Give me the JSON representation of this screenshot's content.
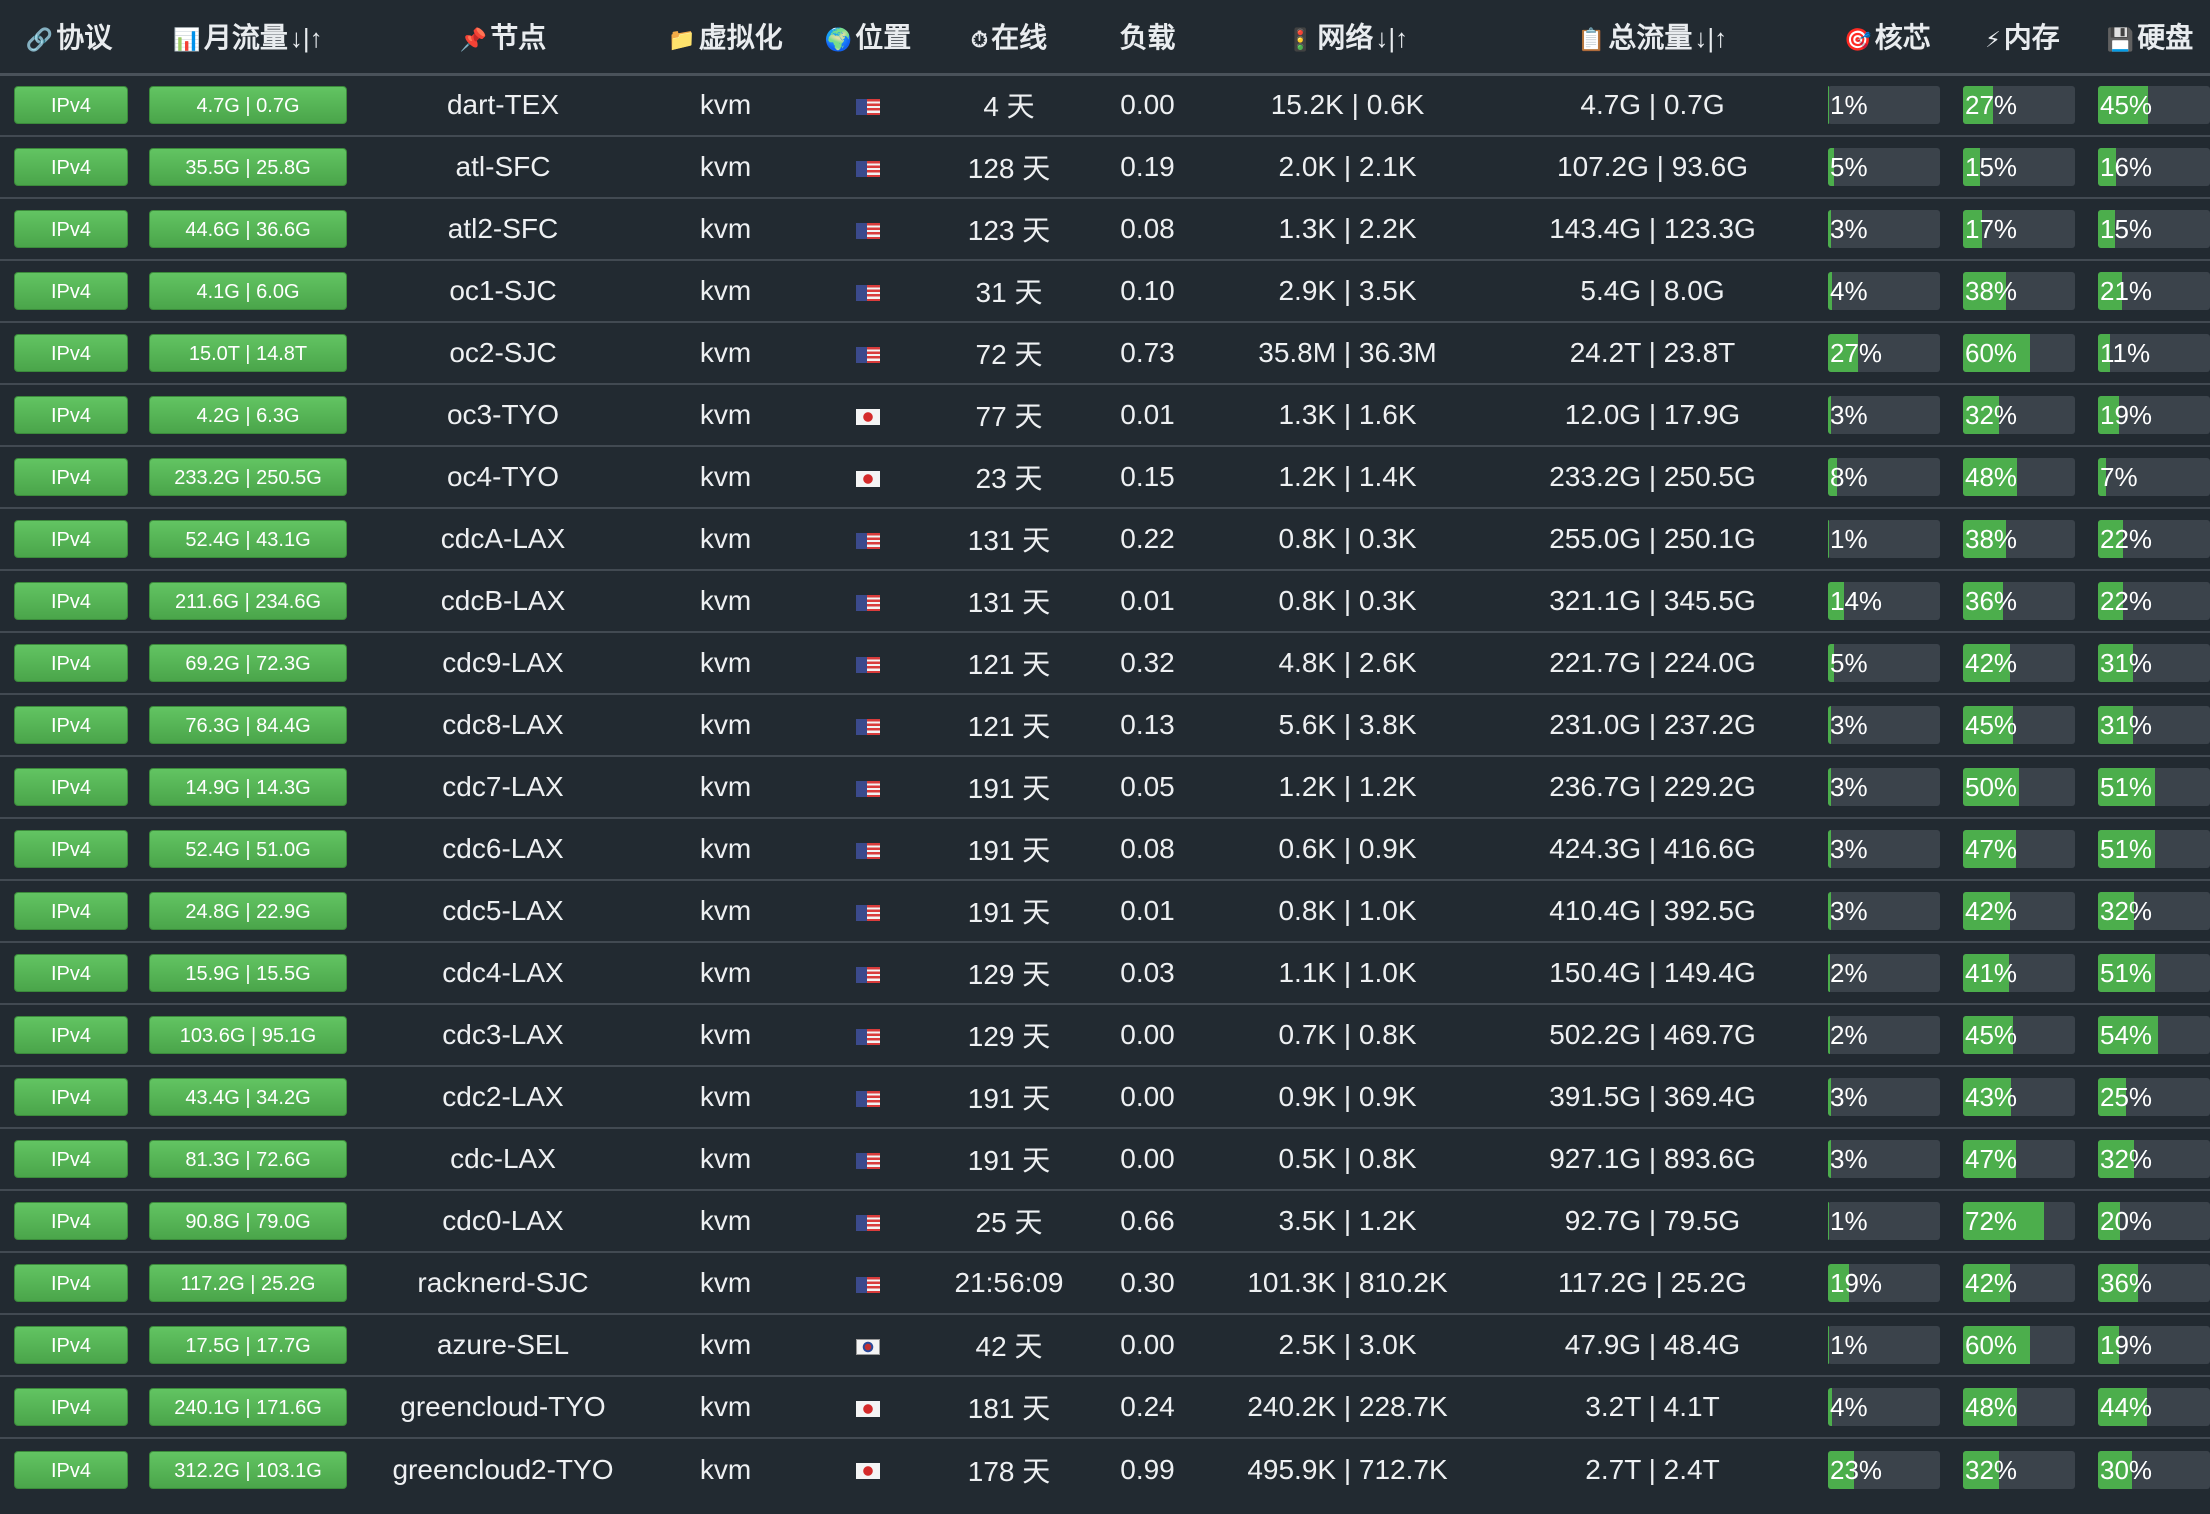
{
  "headers": {
    "protocol": {
      "icon": "🔗",
      "label": "协议"
    },
    "monthly": {
      "icon": "📊",
      "label": "月流量",
      "sort": "↓|↑"
    },
    "node": {
      "icon": "📌",
      "label": "节点"
    },
    "virt": {
      "icon": "📁",
      "label": "虚拟化"
    },
    "location": {
      "icon": "🌍",
      "label": "位置"
    },
    "uptime": {
      "icon": "⏱",
      "label": "在线"
    },
    "load": {
      "label": "负载"
    },
    "network": {
      "icon": "🚦",
      "label": "网络",
      "sort": "↓|↑"
    },
    "total": {
      "icon": "📋",
      "label": "总流量",
      "sort": "↓|↑"
    },
    "cpu": {
      "icon": "🎯",
      "label": "核芯"
    },
    "mem": {
      "icon": "⚡",
      "label": "内存"
    },
    "disk": {
      "icon": "💾",
      "label": "硬盘"
    }
  },
  "colors": {
    "bar_fill": "#4cae4c",
    "bar_bg": "#3b434b",
    "button": "#5cb85c",
    "page_bg": "#222a31"
  },
  "rows": [
    {
      "protocol": "IPv4",
      "monthly": "4.7G | 0.7G",
      "node": "dart-TEX",
      "virt": "kvm",
      "flag": "us",
      "uptime": "4 天",
      "load": "0.00",
      "network": "15.2K | 0.6K",
      "total": "4.7G | 0.7G",
      "cpu": "1%",
      "cpu_pct": 1,
      "mem": "27%",
      "mem_pct": 27,
      "disk": "45%",
      "disk_pct": 45
    },
    {
      "protocol": "IPv4",
      "monthly": "35.5G | 25.8G",
      "node": "atl-SFC",
      "virt": "kvm",
      "flag": "us",
      "uptime": "128 天",
      "load": "0.19",
      "network": "2.0K | 2.1K",
      "total": "107.2G | 93.6G",
      "cpu": "5%",
      "cpu_pct": 5,
      "mem": "15%",
      "mem_pct": 15,
      "disk": "16%",
      "disk_pct": 16
    },
    {
      "protocol": "IPv4",
      "monthly": "44.6G | 36.6G",
      "node": "atl2-SFC",
      "virt": "kvm",
      "flag": "us",
      "uptime": "123 天",
      "load": "0.08",
      "network": "1.3K | 2.2K",
      "total": "143.4G | 123.3G",
      "cpu": "3%",
      "cpu_pct": 3,
      "mem": "17%",
      "mem_pct": 17,
      "disk": "15%",
      "disk_pct": 15
    },
    {
      "protocol": "IPv4",
      "monthly": "4.1G | 6.0G",
      "node": "oc1-SJC",
      "virt": "kvm",
      "flag": "us",
      "uptime": "31 天",
      "load": "0.10",
      "network": "2.9K | 3.5K",
      "total": "5.4G | 8.0G",
      "cpu": "4%",
      "cpu_pct": 4,
      "mem": "38%",
      "mem_pct": 38,
      "disk": "21%",
      "disk_pct": 21
    },
    {
      "protocol": "IPv4",
      "monthly": "15.0T | 14.8T",
      "node": "oc2-SJC",
      "virt": "kvm",
      "flag": "us",
      "uptime": "72 天",
      "load": "0.73",
      "network": "35.8M | 36.3M",
      "total": "24.2T | 23.8T",
      "cpu": "27%",
      "cpu_pct": 27,
      "mem": "60%",
      "mem_pct": 60,
      "disk": "11%",
      "disk_pct": 11
    },
    {
      "protocol": "IPv4",
      "monthly": "4.2G | 6.3G",
      "node": "oc3-TYO",
      "virt": "kvm",
      "flag": "jp",
      "uptime": "77 天",
      "load": "0.01",
      "network": "1.3K | 1.6K",
      "total": "12.0G | 17.9G",
      "cpu": "3%",
      "cpu_pct": 3,
      "mem": "32%",
      "mem_pct": 32,
      "disk": "19%",
      "disk_pct": 19
    },
    {
      "protocol": "IPv4",
      "monthly": "233.2G | 250.5G",
      "node": "oc4-TYO",
      "virt": "kvm",
      "flag": "jp",
      "uptime": "23 天",
      "load": "0.15",
      "network": "1.2K | 1.4K",
      "total": "233.2G | 250.5G",
      "cpu": "8%",
      "cpu_pct": 8,
      "mem": "48%",
      "mem_pct": 48,
      "disk": "7%",
      "disk_pct": 7
    },
    {
      "protocol": "IPv4",
      "monthly": "52.4G | 43.1G",
      "node": "cdcA-LAX",
      "virt": "kvm",
      "flag": "us",
      "uptime": "131 天",
      "load": "0.22",
      "network": "0.8K | 0.3K",
      "total": "255.0G | 250.1G",
      "cpu": "1%",
      "cpu_pct": 1,
      "mem": "38%",
      "mem_pct": 38,
      "disk": "22%",
      "disk_pct": 22
    },
    {
      "protocol": "IPv4",
      "monthly": "211.6G | 234.6G",
      "node": "cdcB-LAX",
      "virt": "kvm",
      "flag": "us",
      "uptime": "131 天",
      "load": "0.01",
      "network": "0.8K | 0.3K",
      "total": "321.1G | 345.5G",
      "cpu": "14%",
      "cpu_pct": 14,
      "mem": "36%",
      "mem_pct": 36,
      "disk": "22%",
      "disk_pct": 22
    },
    {
      "protocol": "IPv4",
      "monthly": "69.2G | 72.3G",
      "node": "cdc9-LAX",
      "virt": "kvm",
      "flag": "us",
      "uptime": "121 天",
      "load": "0.32",
      "network": "4.8K | 2.6K",
      "total": "221.7G | 224.0G",
      "cpu": "5%",
      "cpu_pct": 5,
      "mem": "42%",
      "mem_pct": 42,
      "disk": "31%",
      "disk_pct": 31
    },
    {
      "protocol": "IPv4",
      "monthly": "76.3G | 84.4G",
      "node": "cdc8-LAX",
      "virt": "kvm",
      "flag": "us",
      "uptime": "121 天",
      "load": "0.13",
      "network": "5.6K | 3.8K",
      "total": "231.0G | 237.2G",
      "cpu": "3%",
      "cpu_pct": 3,
      "mem": "45%",
      "mem_pct": 45,
      "disk": "31%",
      "disk_pct": 31
    },
    {
      "protocol": "IPv4",
      "monthly": "14.9G | 14.3G",
      "node": "cdc7-LAX",
      "virt": "kvm",
      "flag": "us",
      "uptime": "191 天",
      "load": "0.05",
      "network": "1.2K | 1.2K",
      "total": "236.7G | 229.2G",
      "cpu": "3%",
      "cpu_pct": 3,
      "mem": "50%",
      "mem_pct": 50,
      "disk": "51%",
      "disk_pct": 51
    },
    {
      "protocol": "IPv4",
      "monthly": "52.4G | 51.0G",
      "node": "cdc6-LAX",
      "virt": "kvm",
      "flag": "us",
      "uptime": "191 天",
      "load": "0.08",
      "network": "0.6K | 0.9K",
      "total": "424.3G | 416.6G",
      "cpu": "3%",
      "cpu_pct": 3,
      "mem": "47%",
      "mem_pct": 47,
      "disk": "51%",
      "disk_pct": 51
    },
    {
      "protocol": "IPv4",
      "monthly": "24.8G | 22.9G",
      "node": "cdc5-LAX",
      "virt": "kvm",
      "flag": "us",
      "uptime": "191 天",
      "load": "0.01",
      "network": "0.8K | 1.0K",
      "total": "410.4G | 392.5G",
      "cpu": "3%",
      "cpu_pct": 3,
      "mem": "42%",
      "mem_pct": 42,
      "disk": "32%",
      "disk_pct": 32
    },
    {
      "protocol": "IPv4",
      "monthly": "15.9G | 15.5G",
      "node": "cdc4-LAX",
      "virt": "kvm",
      "flag": "us",
      "uptime": "129 天",
      "load": "0.03",
      "network": "1.1K | 1.0K",
      "total": "150.4G | 149.4G",
      "cpu": "2%",
      "cpu_pct": 2,
      "mem": "41%",
      "mem_pct": 41,
      "disk": "51%",
      "disk_pct": 51
    },
    {
      "protocol": "IPv4",
      "monthly": "103.6G | 95.1G",
      "node": "cdc3-LAX",
      "virt": "kvm",
      "flag": "us",
      "uptime": "129 天",
      "load": "0.00",
      "network": "0.7K | 0.8K",
      "total": "502.2G | 469.7G",
      "cpu": "2%",
      "cpu_pct": 2,
      "mem": "45%",
      "mem_pct": 45,
      "disk": "54%",
      "disk_pct": 54
    },
    {
      "protocol": "IPv4",
      "monthly": "43.4G | 34.2G",
      "node": "cdc2-LAX",
      "virt": "kvm",
      "flag": "us",
      "uptime": "191 天",
      "load": "0.00",
      "network": "0.9K | 0.9K",
      "total": "391.5G | 369.4G",
      "cpu": "3%",
      "cpu_pct": 3,
      "mem": "43%",
      "mem_pct": 43,
      "disk": "25%",
      "disk_pct": 25
    },
    {
      "protocol": "IPv4",
      "monthly": "81.3G | 72.6G",
      "node": "cdc-LAX",
      "virt": "kvm",
      "flag": "us",
      "uptime": "191 天",
      "load": "0.00",
      "network": "0.5K | 0.8K",
      "total": "927.1G | 893.6G",
      "cpu": "3%",
      "cpu_pct": 3,
      "mem": "47%",
      "mem_pct": 47,
      "disk": "32%",
      "disk_pct": 32
    },
    {
      "protocol": "IPv4",
      "monthly": "90.8G | 79.0G",
      "node": "cdc0-LAX",
      "virt": "kvm",
      "flag": "us",
      "uptime": "25 天",
      "load": "0.66",
      "network": "3.5K | 1.2K",
      "total": "92.7G | 79.5G",
      "cpu": "1%",
      "cpu_pct": 1,
      "mem": "72%",
      "mem_pct": 72,
      "disk": "20%",
      "disk_pct": 20
    },
    {
      "protocol": "IPv4",
      "monthly": "117.2G | 25.2G",
      "node": "racknerd-SJC",
      "virt": "kvm",
      "flag": "us",
      "uptime": "21:56:09",
      "load": "0.30",
      "network": "101.3K | 810.2K",
      "total": "117.2G | 25.2G",
      "cpu": "19%",
      "cpu_pct": 19,
      "mem": "42%",
      "mem_pct": 42,
      "disk": "36%",
      "disk_pct": 36
    },
    {
      "protocol": "IPv4",
      "monthly": "17.5G | 17.7G",
      "node": "azure-SEL",
      "virt": "kvm",
      "flag": "kr",
      "uptime": "42 天",
      "load": "0.00",
      "network": "2.5K | 3.0K",
      "total": "47.9G | 48.4G",
      "cpu": "1%",
      "cpu_pct": 1,
      "mem": "60%",
      "mem_pct": 60,
      "disk": "19%",
      "disk_pct": 19
    },
    {
      "protocol": "IPv4",
      "monthly": "240.1G | 171.6G",
      "node": "greencloud-TYO",
      "virt": "kvm",
      "flag": "jp",
      "uptime": "181 天",
      "load": "0.24",
      "network": "240.2K | 228.7K",
      "total": "3.2T | 4.1T",
      "cpu": "4%",
      "cpu_pct": 4,
      "mem": "48%",
      "mem_pct": 48,
      "disk": "44%",
      "disk_pct": 44
    },
    {
      "protocol": "IPv4",
      "monthly": "312.2G | 103.1G",
      "node": "greencloud2-TYO",
      "virt": "kvm",
      "flag": "jp",
      "uptime": "178 天",
      "load": "0.99",
      "network": "495.9K | 712.7K",
      "total": "2.7T | 2.4T",
      "cpu": "23%",
      "cpu_pct": 23,
      "mem": "32%",
      "mem_pct": 32,
      "disk": "30%",
      "disk_pct": 30
    }
  ]
}
